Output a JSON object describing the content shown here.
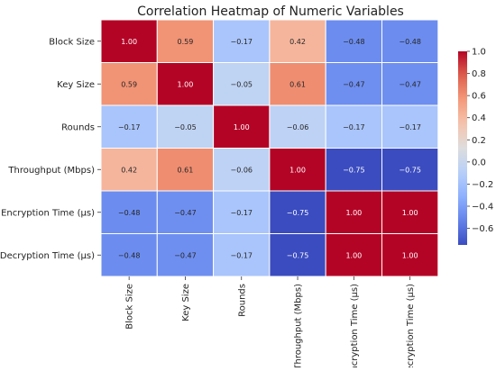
{
  "chart_data": {
    "type": "heatmap",
    "title": "Correlation Heatmap of Numeric Variables",
    "row_labels": [
      "Block Size",
      "Key Size",
      "Rounds",
      "Throughput (Mbps)",
      "Encryption Time (µs)",
      "Decryption Time (µs)"
    ],
    "col_labels": [
      "Block Size",
      "Key Size",
      "Rounds",
      "Throughput (Mbps)",
      "Encryption Time (µs)",
      "Decryption Time (µs)"
    ],
    "values": [
      [
        1.0,
        0.59,
        -0.17,
        0.42,
        -0.48,
        -0.48
      ],
      [
        0.59,
        1.0,
        -0.05,
        0.61,
        -0.47,
        -0.47
      ],
      [
        -0.17,
        -0.05,
        1.0,
        -0.06,
        -0.17,
        -0.17
      ],
      [
        0.42,
        0.61,
        -0.06,
        1.0,
        -0.75,
        -0.75
      ],
      [
        -0.48,
        -0.47,
        -0.17,
        -0.75,
        1.0,
        1.0
      ],
      [
        -0.48,
        -0.47,
        -0.17,
        -0.75,
        1.0,
        1.0
      ]
    ],
    "value_format": "2 decimals",
    "colormap": "coolwarm",
    "colorbar": {
      "range": [
        -0.75,
        1.0
      ],
      "ticks": [
        -0.6,
        -0.4,
        -0.2,
        0.0,
        0.2,
        0.4,
        0.6,
        0.8,
        1.0
      ],
      "tick_labels": [
        "−0.6",
        "−0.4",
        "−0.2",
        "0.0",
        "0.2",
        "0.4",
        "0.6",
        "0.8",
        "1.0"
      ],
      "placement": "right"
    }
  }
}
